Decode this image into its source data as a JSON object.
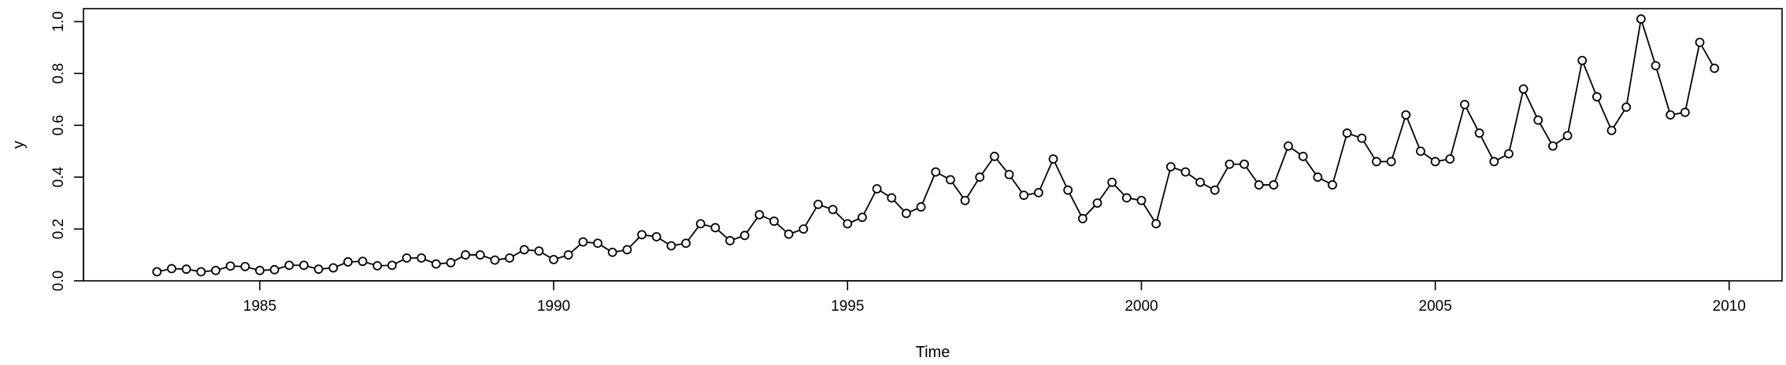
{
  "chart_data": {
    "type": "line",
    "title": "",
    "xlabel": "Time",
    "ylabel": "y",
    "xlim": [
      1982.0,
      2010.9
    ],
    "ylim": [
      0.0,
      1.05
    ],
    "x_ticks": [
      1985,
      1990,
      1995,
      2000,
      2005,
      2010
    ],
    "x_tick_labels": [
      "1985",
      "1990",
      "1995",
      "2000",
      "2005",
      "2010"
    ],
    "y_ticks": [
      0.0,
      0.2,
      0.4,
      0.6,
      0.8,
      1.0
    ],
    "y_tick_labels": [
      "0.0",
      "0.2",
      "0.4",
      "0.6",
      "0.8",
      "1.0"
    ],
    "grid": false,
    "legend": "none",
    "markers": "open-circle",
    "line_color": "#000000",
    "series": [
      {
        "x": [
          1983.25,
          1983.5,
          1983.75,
          1984.0,
          1984.25,
          1984.5,
          1984.75,
          1985.0,
          1985.25,
          1985.5,
          1985.75,
          1986.0,
          1986.25,
          1986.5,
          1986.75,
          1987.0,
          1987.25,
          1987.5,
          1987.75,
          1988.0,
          1988.25,
          1988.5,
          1988.75,
          1989.0,
          1989.25,
          1989.5,
          1989.75,
          1990.0,
          1990.25,
          1990.5,
          1990.75,
          1991.0,
          1991.25,
          1991.5,
          1991.75,
          1992.0,
          1992.25,
          1992.5,
          1992.75,
          1993.0,
          1993.25,
          1993.5,
          1993.75,
          1994.0,
          1994.25,
          1994.5,
          1994.75,
          1995.0,
          1995.25,
          1995.5,
          1995.75,
          1996.0,
          1996.25,
          1996.5,
          1996.75,
          1997.0,
          1997.25,
          1997.5,
          1997.75,
          1998.0,
          1998.25,
          1998.5,
          1998.75,
          1999.0,
          1999.25,
          1999.5,
          1999.75,
          2000.0,
          2000.25,
          2000.5,
          2000.75,
          2001.0,
          2001.25,
          2001.5,
          2001.75,
          2002.0,
          2002.25,
          2002.5,
          2002.75,
          2003.0,
          2003.25,
          2003.5,
          2003.75,
          2004.0,
          2004.25,
          2004.5,
          2004.75,
          2005.0,
          2005.25,
          2005.5,
          2005.75,
          2006.0,
          2006.25,
          2006.5,
          2006.75,
          2007.0,
          2007.25,
          2007.5,
          2007.75,
          2008.0,
          2008.25,
          2008.5,
          2008.75,
          2009.0,
          2009.25,
          2009.5,
          2009.75
        ],
        "y": [
          0.035,
          0.047,
          0.045,
          0.035,
          0.04,
          0.057,
          0.055,
          0.04,
          0.043,
          0.06,
          0.06,
          0.045,
          0.05,
          0.073,
          0.075,
          0.058,
          0.06,
          0.088,
          0.088,
          0.065,
          0.07,
          0.1,
          0.1,
          0.08,
          0.088,
          0.12,
          0.115,
          0.082,
          0.1,
          0.15,
          0.145,
          0.11,
          0.12,
          0.178,
          0.17,
          0.135,
          0.145,
          0.22,
          0.205,
          0.155,
          0.175,
          0.255,
          0.23,
          0.18,
          0.2,
          0.295,
          0.275,
          0.22,
          0.245,
          0.355,
          0.32,
          0.26,
          0.285,
          0.42,
          0.39,
          0.31,
          0.4,
          0.48,
          0.41,
          0.33,
          0.34,
          0.47,
          0.35,
          0.24,
          0.3,
          0.38,
          0.32,
          0.31,
          0.22,
          0.44,
          0.42,
          0.38,
          0.35,
          0.45,
          0.45,
          0.37,
          0.37,
          0.52,
          0.48,
          0.4,
          0.37,
          0.57,
          0.55,
          0.46,
          0.46,
          0.64,
          0.5,
          0.46,
          0.47,
          0.68,
          0.57,
          0.46,
          0.49,
          0.74,
          0.62,
          0.52,
          0.56,
          0.85,
          0.71,
          0.58,
          0.67,
          1.01,
          0.83,
          0.64,
          0.65,
          0.92,
          0.82
        ]
      }
    ]
  }
}
